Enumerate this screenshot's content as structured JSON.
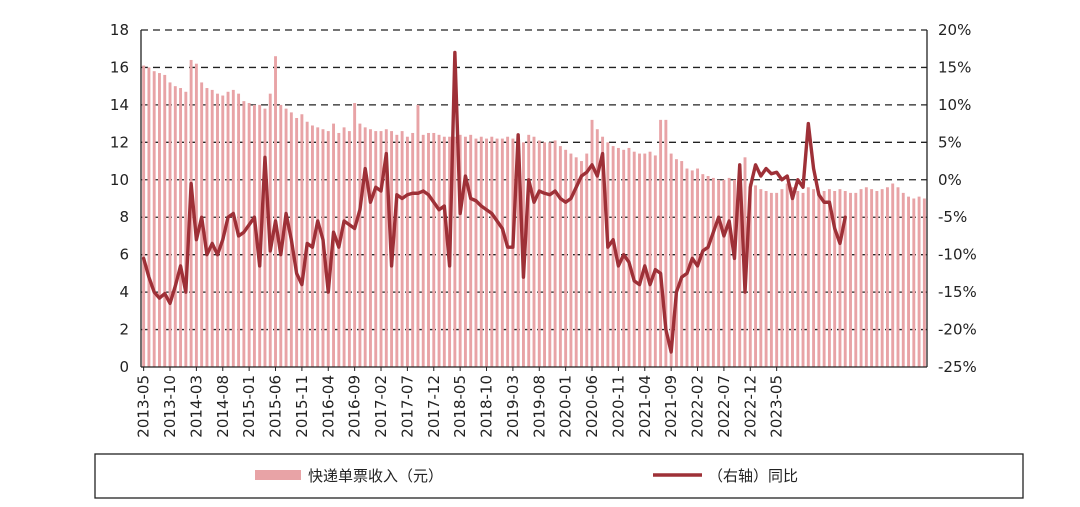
{
  "chart_data": {
    "type": "bar+line",
    "title": "",
    "x_tick_labels": [
      "2013-05",
      "2013-10",
      "2014-03",
      "2014-08",
      "2015-01",
      "2015-06",
      "2015-11",
      "2016-04",
      "2016-09",
      "2017-02",
      "2017-07",
      "2017-12",
      "2018-05",
      "2018-10",
      "2019-03",
      "2019-08",
      "2020-01",
      "2020-06",
      "2020-11",
      "2021-04",
      "2021-09",
      "2022-02",
      "2022-07",
      "2022-12",
      "2023-05"
    ],
    "y_left": {
      "ticks": [
        "0",
        "2",
        "4",
        "6",
        "8",
        "10",
        "12",
        "14",
        "16",
        "18"
      ],
      "range": [
        0,
        18
      ]
    },
    "y_right": {
      "ticks": [
        "-25%",
        "-20%",
        "-15%",
        "-10%",
        "-5%",
        "0%",
        "5%",
        "10%",
        "15%",
        "20%"
      ],
      "range": [
        -25,
        20
      ]
    },
    "grid": "horizontal dashed",
    "legend_placement": "bottom",
    "series": [
      {
        "name": "快递单票收入（元）",
        "axis": "left",
        "kind": "bar",
        "color": "#e8a3a6",
        "start": "2013-05",
        "values": [
          16.1,
          16.0,
          15.8,
          15.7,
          15.6,
          15.2,
          15.0,
          14.9,
          14.7,
          16.4,
          16.2,
          15.2,
          14.9,
          14.8,
          14.6,
          14.5,
          14.7,
          14.8,
          14.6,
          14.2,
          14.1,
          14.0,
          14.0,
          13.8,
          14.6,
          16.6,
          14.0,
          13.8,
          13.6,
          13.3,
          13.5,
          13.1,
          12.9,
          12.8,
          12.7,
          12.6,
          13.0,
          12.5,
          12.8,
          12.6,
          14.1,
          13.0,
          12.8,
          12.7,
          12.6,
          12.6,
          12.7,
          12.6,
          12.4,
          12.6,
          12.3,
          12.5,
          14.0,
          12.4,
          12.5,
          12.5,
          12.4,
          12.3,
          12.3,
          12.3,
          12.4,
          12.3,
          12.4,
          12.2,
          12.3,
          12.2,
          12.3,
          12.2,
          12.2,
          12.3,
          12.2,
          12.1,
          12.0,
          12.4,
          12.3,
          12.1,
          12.0,
          12.0,
          12.1,
          11.8,
          11.6,
          11.4,
          11.2,
          11.0,
          11.4,
          13.2,
          12.7,
          12.3,
          12.0,
          11.8,
          11.7,
          11.6,
          11.7,
          11.5,
          11.4,
          11.4,
          11.5,
          11.3,
          13.2,
          13.2,
          11.4,
          11.1,
          11.0,
          10.6,
          10.5,
          10.6,
          10.3,
          10.2,
          10.1,
          10.0,
          10.0,
          10.1,
          10.0,
          10.1,
          11.2,
          9.8,
          9.7,
          9.5,
          9.4,
          9.3,
          9.3,
          9.5,
          9.8,
          9.6,
          9.4,
          9.3,
          9.6,
          9.5,
          9.3,
          9.4,
          9.5,
          9.4,
          9.5,
          9.4,
          9.3,
          9.3,
          9.5,
          9.6,
          9.5,
          9.4,
          9.5,
          9.6,
          9.8,
          9.6,
          9.3,
          9.1,
          9.0,
          9.1,
          9.0
        ]
      },
      {
        "name": "（右轴）同比",
        "axis": "right",
        "kind": "line",
        "color": "#9e3037",
        "start": "2013-05",
        "values": [
          -10.5,
          -13.0,
          -15.0,
          -15.8,
          -15.2,
          -16.5,
          -14.2,
          -11.5,
          -15.0,
          -0.5,
          -8.0,
          -5.0,
          -10.0,
          -8.5,
          -10.0,
          -8.0,
          -5.0,
          -4.5,
          -7.5,
          -7.0,
          -6.0,
          -5.0,
          -11.5,
          3.0,
          -9.5,
          -5.5,
          -10.0,
          -4.5,
          -8.0,
          -12.5,
          -14.0,
          -8.5,
          -9.0,
          -5.5,
          -8.0,
          -15.0,
          -7.0,
          -9.0,
          -5.5,
          -6.0,
          -6.5,
          -4.0,
          1.5,
          -3.0,
          -1.0,
          -1.5,
          3.5,
          -11.5,
          -2.0,
          -2.5,
          -2.0,
          -1.8,
          -1.8,
          -1.5,
          -2.0,
          -3.0,
          -4.0,
          -3.5,
          -11.5,
          17.0,
          -4.5,
          0.5,
          -2.5,
          -2.8,
          -3.5,
          -4.0,
          -4.5,
          -5.5,
          -6.5,
          -9.0,
          -9.0,
          6.0,
          -13.0,
          0.0,
          -3.0,
          -1.5,
          -1.8,
          -2.0,
          -1.5,
          -2.5,
          -3.0,
          -2.5,
          -1.0,
          0.5,
          1.0,
          2.0,
          0.5,
          3.5,
          -9.0,
          -8.0,
          -11.5,
          -10.0,
          -11.0,
          -13.5,
          -14.0,
          -11.5,
          -14.0,
          -12.0,
          -12.5,
          -20.0,
          -23.0,
          -15.0,
          -13.0,
          -12.5,
          -10.5,
          -11.5,
          -9.5,
          -9.0,
          -7.0,
          -5.0,
          -7.5,
          -5.5,
          -10.5,
          2.0,
          -15.0,
          -1.0,
          2.0,
          0.5,
          1.5,
          0.8,
          1.0,
          0.0,
          0.5,
          -2.5,
          0.0,
          -1.0,
          7.5,
          1.5,
          -2.0,
          -3.0,
          -3.0,
          -6.5,
          -8.5,
          -5.0
        ]
      }
    ]
  }
}
